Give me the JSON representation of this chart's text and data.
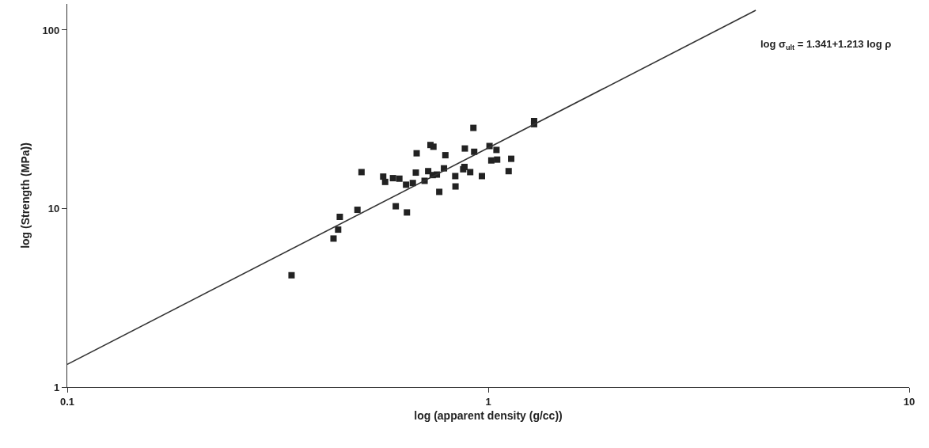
{
  "chart_data": {
    "type": "scatter",
    "xlabel": "log (apparent density (g/cc))",
    "ylabel": "log (Strength (MPa))",
    "log": "xy",
    "xlim": [
      0.1,
      10
    ],
    "ylim": [
      1,
      140
    ],
    "xticks": [
      0.1,
      1,
      10
    ],
    "yticks": [
      1,
      10,
      100
    ],
    "grid": false,
    "legend": false,
    "marker": "square",
    "annotations": [
      "log σ$_{ult}$ = 1.341+1.213 log ρ"
    ],
    "series": [
      {
        "color": "#222222",
        "x": [
          0.341,
          0.429,
          0.44,
          0.444,
          0.489,
          0.5,
          0.563,
          0.569,
          0.594,
          0.615,
          0.603,
          0.641,
          0.638,
          0.662,
          0.673,
          0.676,
          0.706,
          0.72,
          0.729,
          0.741,
          0.738,
          0.755,
          0.765,
          0.785,
          0.791,
          0.835,
          0.836,
          0.872,
          0.878,
          0.88,
          0.906,
          0.922,
          0.926,
          0.966,
          1.007,
          1.046,
          1.017,
          1.05,
          1.118,
          1.134,
          1.285,
          1.285
        ],
        "values": [
          4.23,
          6.79,
          7.62,
          8.98,
          9.84,
          16.0,
          15.1,
          14.1,
          14.8,
          14.7,
          10.3,
          9.51,
          13.6,
          13.9,
          15.9,
          20.4,
          14.3,
          16.2,
          22.7,
          22.2,
          15.4,
          15.5,
          12.4,
          16.8,
          19.9,
          15.2,
          13.3,
          16.6,
          17.1,
          21.7,
          16.0,
          28.3,
          20.8,
          15.2,
          22.4,
          21.3,
          18.6,
          18.8,
          16.2,
          19.0,
          30.9,
          29.7
        ]
      },
      {
        "type": "line",
        "color": "#333333",
        "marker": "none",
        "line_style": "solid",
        "x": [
          0.1,
          4.32
        ],
        "values": [
          1.34,
          129
        ]
      }
    ]
  }
}
